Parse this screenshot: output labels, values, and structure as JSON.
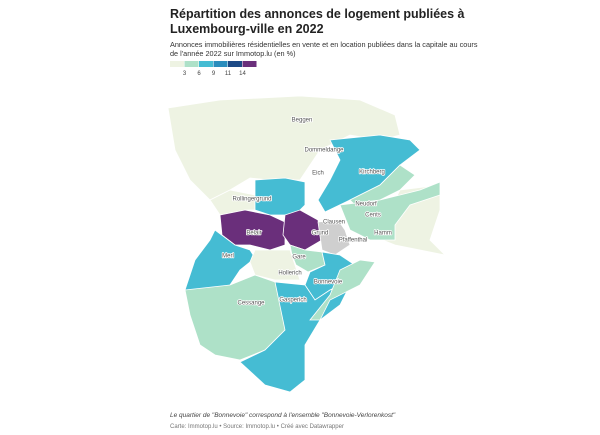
{
  "header": {
    "title_lines": [
      "Répartition des annonces de logement publiées à",
      "Luxembourg-ville en 2022"
    ],
    "subtitle_lines": [
      "Annonces immobilières résidentielles en vente et en location publiées dans la capitale au cours",
      "de l'année 2022 sur Immotop.lu (en %)"
    ]
  },
  "legend": {
    "colors": [
      "#eef3e3",
      "#aee1c8",
      "#45bcd3",
      "#2a8dbd",
      "#1d4a86",
      "#6a2f7b"
    ],
    "ticks": [
      3,
      6,
      9,
      11,
      14
    ],
    "no_data_color": "#cfcfcf"
  },
  "districts": [
    "Beggen",
    "Dommeldange",
    "Eich",
    "Kirchberg",
    "Rollingergrund",
    "Neudorf",
    "Cents",
    "Belair",
    "Grund",
    "Clausen",
    "Pfaffenthal",
    "Hamm",
    "Merl",
    "Gare",
    "Hollerich",
    "Bonnevoie",
    "Cessange",
    "Gasperich"
  ],
  "footer": {
    "note": "Le quartier de \"Bonnevoie\" correspond à l'ensemble \"Bonnevoie-Verlorenkost\"",
    "source": "Carte: Immotop.lu • Source: Immotop.lu • Créé avec Datawrapper"
  }
}
